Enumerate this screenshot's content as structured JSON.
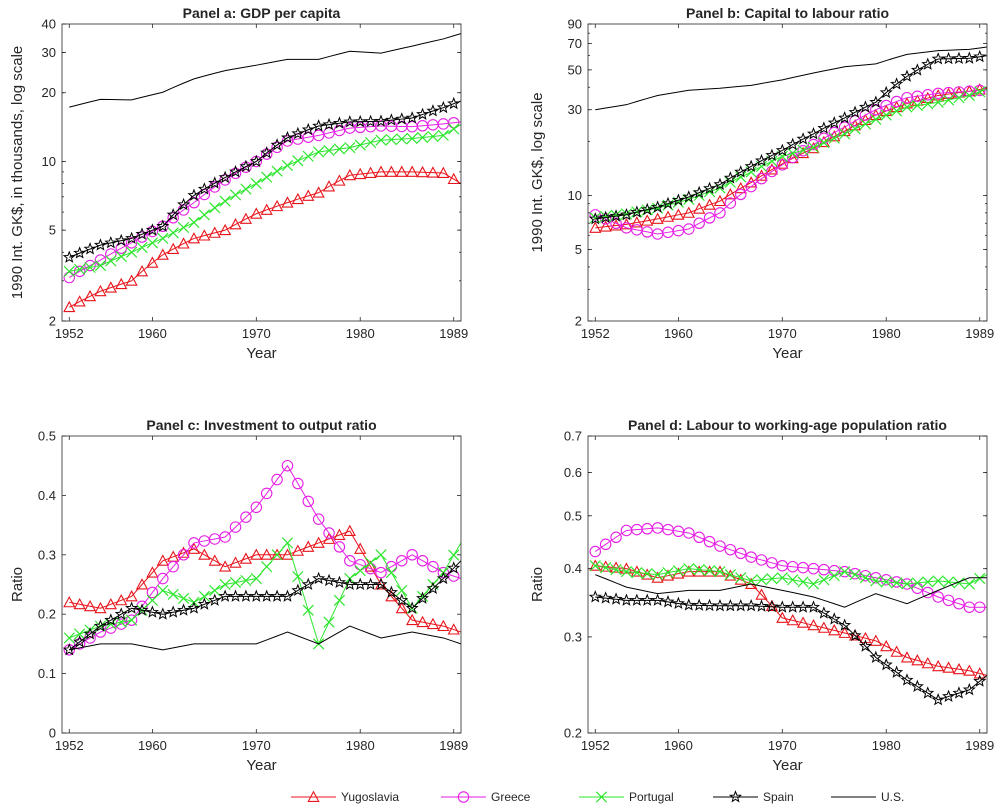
{
  "series_meta": [
    {
      "key": "yug",
      "name": "Yugoslavia",
      "color": "#e8141b",
      "marker": "triangle"
    },
    {
      "key": "gre",
      "name": "Greece",
      "color": "#e61ee6",
      "marker": "circle"
    },
    {
      "key": "por",
      "name": "Portugal",
      "color": "#2ee62e",
      "marker": "x"
    },
    {
      "key": "spa",
      "name": "Spain",
      "color": "#000000",
      "marker": "star"
    },
    {
      "key": "us",
      "name": "U.S.",
      "color": "#000000",
      "marker": "none"
    }
  ],
  "chart_data": [
    {
      "type": "line",
      "title": "Panel a: GDP per capita",
      "xlabel": "Year",
      "ylabel": "1990 Int. GK$, in thousands, log scale",
      "yscale": "log",
      "xlim": [
        1951.3,
        1989.7
      ],
      "ylim": [
        2,
        40
      ],
      "xticks": [
        1952,
        1960,
        1970,
        1980,
        1989
      ],
      "yticks": [
        2,
        5,
        10,
        20,
        30,
        40
      ],
      "anchors_x": [
        1952,
        1955,
        1958,
        1961,
        1964,
        1967,
        1970,
        1973,
        1976,
        1979,
        1982,
        1985,
        1988,
        1989.7
      ],
      "series": [
        {
          "key": "yug",
          "values": [
            2.3,
            2.7,
            3.0,
            3.9,
            4.6,
            5.0,
            5.9,
            6.6,
            7.3,
            8.7,
            9.0,
            9.0,
            8.9,
            8.0
          ]
        },
        {
          "key": "gre",
          "values": [
            3.1,
            3.7,
            4.4,
            5.2,
            6.6,
            8.3,
            10.0,
            12.3,
            13.0,
            14.0,
            14.3,
            14.2,
            14.6,
            14.9
          ]
        },
        {
          "key": "por",
          "values": [
            3.3,
            3.5,
            4.0,
            4.6,
            5.4,
            6.7,
            8.0,
            9.6,
            11.0,
            11.5,
            12.4,
            12.6,
            13.0,
            14.5
          ]
        },
        {
          "key": "spa",
          "values": [
            3.8,
            4.3,
            4.6,
            5.2,
            7.1,
            8.5,
            10.0,
            12.7,
            14.3,
            14.9,
            15.0,
            15.5,
            17.2,
            18.4
          ]
        },
        {
          "key": "us",
          "values": [
            17.3,
            18.7,
            18.6,
            20.1,
            23.0,
            25.0,
            26.4,
            28.0,
            28.0,
            30.4,
            29.8,
            32.0,
            34.4,
            36.3
          ]
        }
      ]
    },
    {
      "type": "line",
      "title": "Panel b: Capital to labour ratio",
      "xlabel": "Year",
      "ylabel": "1990 Int. GK$, log scale",
      "yscale": "log",
      "xlim": [
        1951.3,
        1989.7
      ],
      "ylim": [
        2,
        90
      ],
      "xticks": [
        1952,
        1960,
        1970,
        1980,
        1989
      ],
      "yticks": [
        2,
        5,
        10,
        30,
        50,
        70,
        90
      ],
      "anchors_x": [
        1952,
        1955,
        1958,
        1961,
        1964,
        1967,
        1970,
        1973,
        1976,
        1979,
        1982,
        1985,
        1988,
        1989.7
      ],
      "series": [
        {
          "key": "yug",
          "values": [
            6.6,
            6.9,
            7.4,
            8.0,
            9.3,
            11.8,
            15.0,
            18.3,
            22.8,
            28.0,
            32.5,
            36.0,
            38.0,
            39.5
          ]
        },
        {
          "key": "gre",
          "values": [
            7.8,
            6.6,
            6.1,
            6.5,
            8.0,
            11.2,
            14.8,
            19.2,
            24.0,
            30.0,
            35.0,
            37.0,
            38.0,
            38.7
          ]
        },
        {
          "key": "por",
          "values": [
            7.5,
            7.9,
            8.5,
            9.5,
            11.0,
            13.5,
            16.5,
            18.5,
            22.0,
            26.5,
            31.0,
            33.0,
            36.0,
            39.0
          ]
        },
        {
          "key": "spa",
          "values": [
            7.4,
            7.8,
            8.6,
            9.8,
            11.5,
            14.5,
            17.8,
            22.0,
            27.0,
            33.0,
            46.0,
            57.5,
            58.0,
            60.0
          ]
        },
        {
          "key": "us",
          "values": [
            30.0,
            32.0,
            36.0,
            38.5,
            39.5,
            41.0,
            44.0,
            48.0,
            52.0,
            54.0,
            61.0,
            64.0,
            65.0,
            67.0
          ]
        }
      ]
    },
    {
      "type": "line",
      "title": "Panel c: Investment to output ratio",
      "xlabel": "Year",
      "ylabel": "Ratio",
      "yscale": "linear",
      "xlim": [
        1951.3,
        1989.7
      ],
      "ylim": [
        0,
        0.5
      ],
      "xticks": [
        1952,
        1960,
        1970,
        1980,
        1989
      ],
      "yticks": [
        0,
        0.1,
        0.2,
        0.3,
        0.4,
        0.5
      ],
      "anchors_x": [
        1952,
        1955,
        1958,
        1961,
        1964,
        1967,
        1970,
        1973,
        1976,
        1979,
        1982,
        1985,
        1988,
        1989.7
      ],
      "series": [
        {
          "key": "yug",
          "values": [
            0.22,
            0.21,
            0.23,
            0.29,
            0.31,
            0.28,
            0.3,
            0.3,
            0.32,
            0.34,
            0.25,
            0.19,
            0.18,
            0.17
          ]
        },
        {
          "key": "gre",
          "values": [
            0.14,
            0.17,
            0.19,
            0.26,
            0.32,
            0.33,
            0.38,
            0.45,
            0.36,
            0.29,
            0.27,
            0.3,
            0.27,
            0.26
          ]
        },
        {
          "key": "por",
          "values": [
            0.16,
            0.18,
            0.19,
            0.24,
            0.22,
            0.25,
            0.26,
            0.32,
            0.15,
            0.26,
            0.3,
            0.21,
            0.27,
            0.32
          ]
        },
        {
          "key": "spa",
          "values": [
            0.14,
            0.18,
            0.21,
            0.2,
            0.21,
            0.23,
            0.23,
            0.23,
            0.26,
            0.25,
            0.25,
            0.21,
            0.26,
            0.29
          ]
        },
        {
          "key": "us",
          "values": [
            0.14,
            0.15,
            0.15,
            0.14,
            0.15,
            0.15,
            0.15,
            0.17,
            0.15,
            0.18,
            0.16,
            0.17,
            0.16,
            0.15
          ]
        }
      ]
    },
    {
      "type": "line",
      "title": "Panel d: Labour to working-age population ratio",
      "xlabel": "Year",
      "ylabel": "Ratio",
      "yscale": "log",
      "xlim": [
        1951.3,
        1989.7
      ],
      "ylim": [
        0.2,
        0.7
      ],
      "xticks": [
        1952,
        1960,
        1970,
        1980,
        1989
      ],
      "yticks": [
        0.2,
        0.3,
        0.4,
        0.5,
        0.6,
        0.7
      ],
      "anchors_x": [
        1952,
        1955,
        1958,
        1961,
        1964,
        1967,
        1970,
        1973,
        1976,
        1979,
        1982,
        1985,
        1988,
        1989.7
      ],
      "series": [
        {
          "key": "yug",
          "values": [
            0.405,
            0.4,
            0.385,
            0.395,
            0.395,
            0.375,
            0.325,
            0.315,
            0.305,
            0.295,
            0.275,
            0.265,
            0.26,
            0.255
          ]
        },
        {
          "key": "gre",
          "values": [
            0.43,
            0.47,
            0.475,
            0.465,
            0.44,
            0.42,
            0.405,
            0.4,
            0.395,
            0.385,
            0.375,
            0.355,
            0.34,
            0.34
          ]
        },
        {
          "key": "por",
          "values": [
            0.405,
            0.395,
            0.39,
            0.4,
            0.395,
            0.38,
            0.385,
            0.375,
            0.395,
            0.38,
            0.375,
            0.38,
            0.375,
            0.39
          ]
        },
        {
          "key": "spa",
          "values": [
            0.355,
            0.35,
            0.35,
            0.343,
            0.342,
            0.342,
            0.34,
            0.34,
            0.315,
            0.275,
            0.25,
            0.23,
            0.24,
            0.255
          ]
        },
        {
          "key": "us",
          "values": [
            0.39,
            0.37,
            0.36,
            0.365,
            0.365,
            0.375,
            0.365,
            0.355,
            0.34,
            0.36,
            0.345,
            0.365,
            0.385,
            0.385
          ]
        }
      ]
    }
  ]
}
